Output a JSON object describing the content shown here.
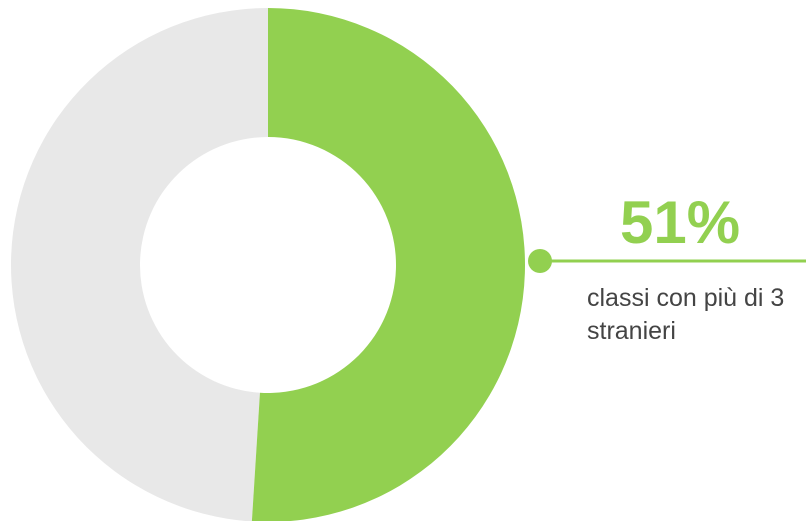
{
  "chart_data": {
    "type": "pie",
    "donut": true,
    "categories": [
      "classi con più di 3 stranieri",
      null
    ],
    "values": [
      51,
      49
    ],
    "value_labels": [
      "51%",
      null
    ],
    "colors": [
      "#92d050",
      "#e8e8e8"
    ]
  }
}
